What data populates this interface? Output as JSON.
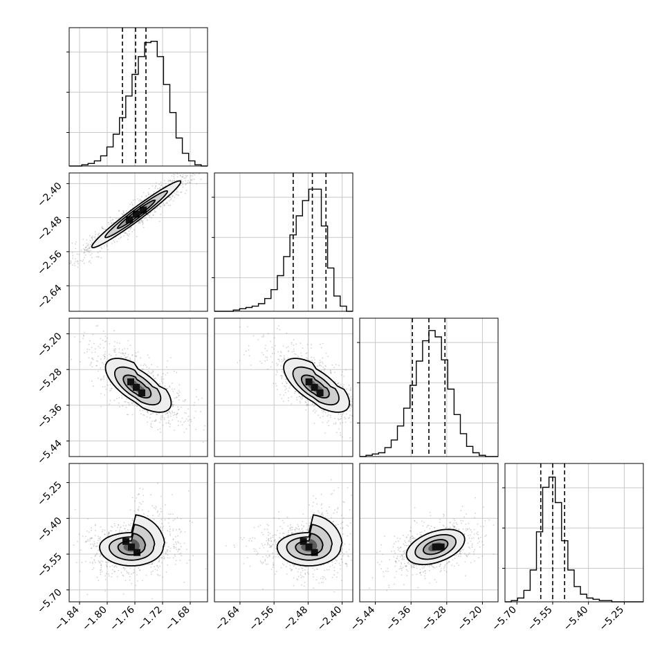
{
  "chart_data": {
    "type": "corner",
    "parameters": [
      {
        "xticks": [
          "−1.84",
          "−1.80",
          "−1.76",
          "−1.72",
          "−1.68"
        ],
        "xvals": [
          -1.84,
          -1.8,
          -1.76,
          -1.72,
          -1.68
        ],
        "range": [
          -1.855,
          -1.655
        ],
        "quantiles": [
          -1.778,
          -1.759,
          -1.744
        ]
      },
      {
        "xticks": [
          "−2.64",
          "−2.56",
          "−2.48",
          "−2.40"
        ],
        "xvals": [
          -2.64,
          -2.56,
          -2.48,
          -2.4
        ],
        "range": [
          -2.7,
          -2.375
        ],
        "quantiles": [
          -2.515,
          -2.47,
          -2.438
        ]
      },
      {
        "xticks": [
          "−5.44",
          "−5.36",
          "−5.28",
          "−5.20"
        ],
        "xvals": [
          -5.44,
          -5.36,
          -5.28,
          -5.2
        ],
        "range": [
          -5.475,
          -5.165
        ],
        "quantiles": [
          -5.357,
          -5.32,
          -5.284
        ]
      },
      {
        "xticks": [
          "−5.70",
          "−5.55",
          "−5.40",
          "−5.25"
        ],
        "xvals": [
          -5.7,
          -5.55,
          -5.4,
          -5.25
        ],
        "range": [
          -5.75,
          -5.17
        ],
        "quantiles": [
          -5.6,
          -5.55,
          -5.5
        ]
      }
    ],
    "row_ticks": [
      {
        "labels": [
          "−2.40",
          "−2.48",
          "−2.56",
          "−2.64"
        ],
        "vals": [
          -2.4,
          -2.48,
          -2.56,
          -2.64
        ]
      },
      {
        "labels": [
          "−5.20",
          "−5.28",
          "−5.36",
          "−5.44"
        ],
        "vals": [
          -5.2,
          -5.28,
          -5.36,
          -5.44
        ]
      },
      {
        "labels": [
          "−5.25",
          "−5.40",
          "−5.55",
          "−5.70"
        ],
        "vals": [
          -5.25,
          -5.4,
          -5.55,
          -5.7
        ]
      }
    ],
    "histograms": [
      [
        0.0,
        0.0,
        0.01,
        0.02,
        0.04,
        0.08,
        0.15,
        0.25,
        0.38,
        0.55,
        0.72,
        0.86,
        0.97,
        0.98,
        0.86,
        0.64,
        0.42,
        0.22,
        0.1,
        0.04,
        0.01,
        0.0
      ],
      [
        0.0,
        0.0,
        0.0,
        0.01,
        0.02,
        0.03,
        0.04,
        0.06,
        0.1,
        0.17,
        0.28,
        0.43,
        0.6,
        0.75,
        0.87,
        0.96,
        0.96,
        0.67,
        0.34,
        0.12,
        0.04,
        0.0
      ],
      [
        0.0,
        0.01,
        0.02,
        0.03,
        0.07,
        0.13,
        0.24,
        0.38,
        0.56,
        0.75,
        0.91,
        0.99,
        0.94,
        0.76,
        0.53,
        0.33,
        0.18,
        0.08,
        0.03,
        0.01,
        0.0,
        0.0
      ],
      [
        0.0,
        0.01,
        0.03,
        0.09,
        0.25,
        0.55,
        0.9,
        0.98,
        0.78,
        0.48,
        0.25,
        0.12,
        0.06,
        0.03,
        0.02,
        0.01,
        0.01,
        0.0,
        0.0,
        0.0,
        0.0,
        0.0
      ]
    ],
    "axes_color": "#000000",
    "grid_color": "#c8c8c8",
    "sample_color": "#7a7a7a"
  }
}
